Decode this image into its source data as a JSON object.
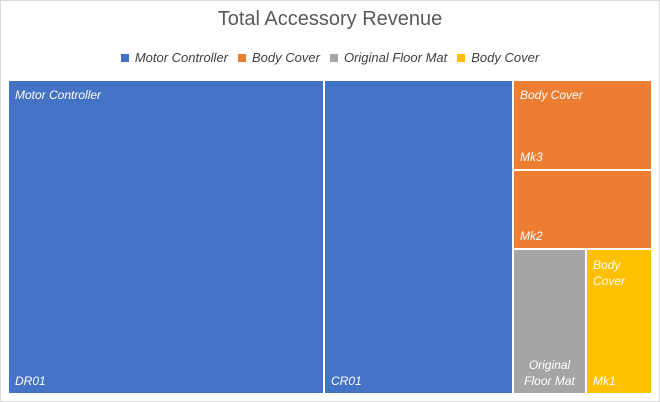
{
  "chart_data": {
    "type": "treemap",
    "title": "Total Accessory Revenue",
    "legend": [
      {
        "name": "Motor Controller",
        "color": "#4472c4"
      },
      {
        "name": "Body Cover",
        "color": "#ed7d31"
      },
      {
        "name": "Original Floor Mat",
        "color": "#a5a5a5"
      },
      {
        "name": "Body Cover",
        "color": "#ffc000"
      }
    ],
    "tiles": [
      {
        "group": "Motor Controller",
        "category": "DR01",
        "value": 100,
        "color": "#4472c4",
        "show_group": true
      },
      {
        "group": "Motor Controller",
        "category": "CR01",
        "value": 60,
        "color": "#4472c4",
        "show_group": false
      },
      {
        "group": "Body Cover",
        "category": "Mk3",
        "value": 15,
        "color": "#ed7d31",
        "show_group": true
      },
      {
        "group": "Body Cover",
        "category": "Mk2",
        "value": 14,
        "color": "#ed7d31",
        "show_group": false
      },
      {
        "group": "Original Floor Mat",
        "category": "",
        "value": 14,
        "color": "#a5a5a5",
        "show_group": true
      },
      {
        "group": "Body Cover",
        "category": "Mk1",
        "value": 13,
        "color": "#ffc000",
        "show_group": true
      }
    ]
  }
}
